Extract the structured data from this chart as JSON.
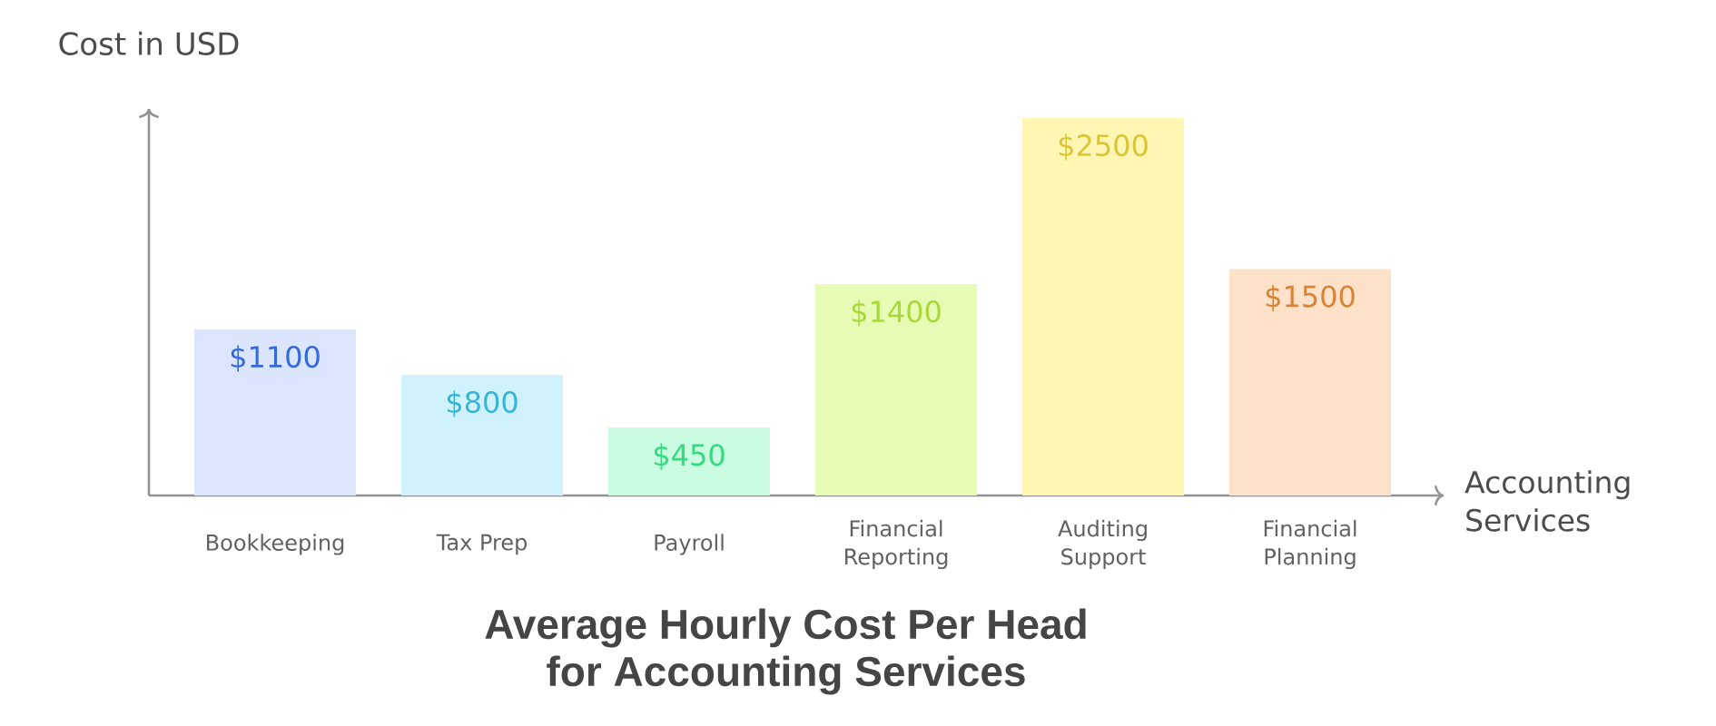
{
  "chart_data": {
    "type": "bar",
    "title": "Average Hourly Cost Per Head for Accounting Services",
    "xlabel": "Accounting Services",
    "ylabel": "Cost in USD",
    "categories": [
      "Bookkeeping",
      "Tax Prep",
      "Payroll",
      "Financial Reporting",
      "Auditing Support",
      "Financial Planning"
    ],
    "values": [
      1100,
      800,
      450,
      1400,
      2500,
      1500
    ],
    "value_labels": [
      "$1100",
      "$800",
      "$450",
      "$1400",
      "$2500",
      "$1500"
    ],
    "colors": [
      "#dbe6fe",
      "#cff2fc",
      "#c9fce0",
      "#e6fcb4",
      "#fff6b3",
      "#fde1c8"
    ],
    "tick_labels": "x"
  }
}
